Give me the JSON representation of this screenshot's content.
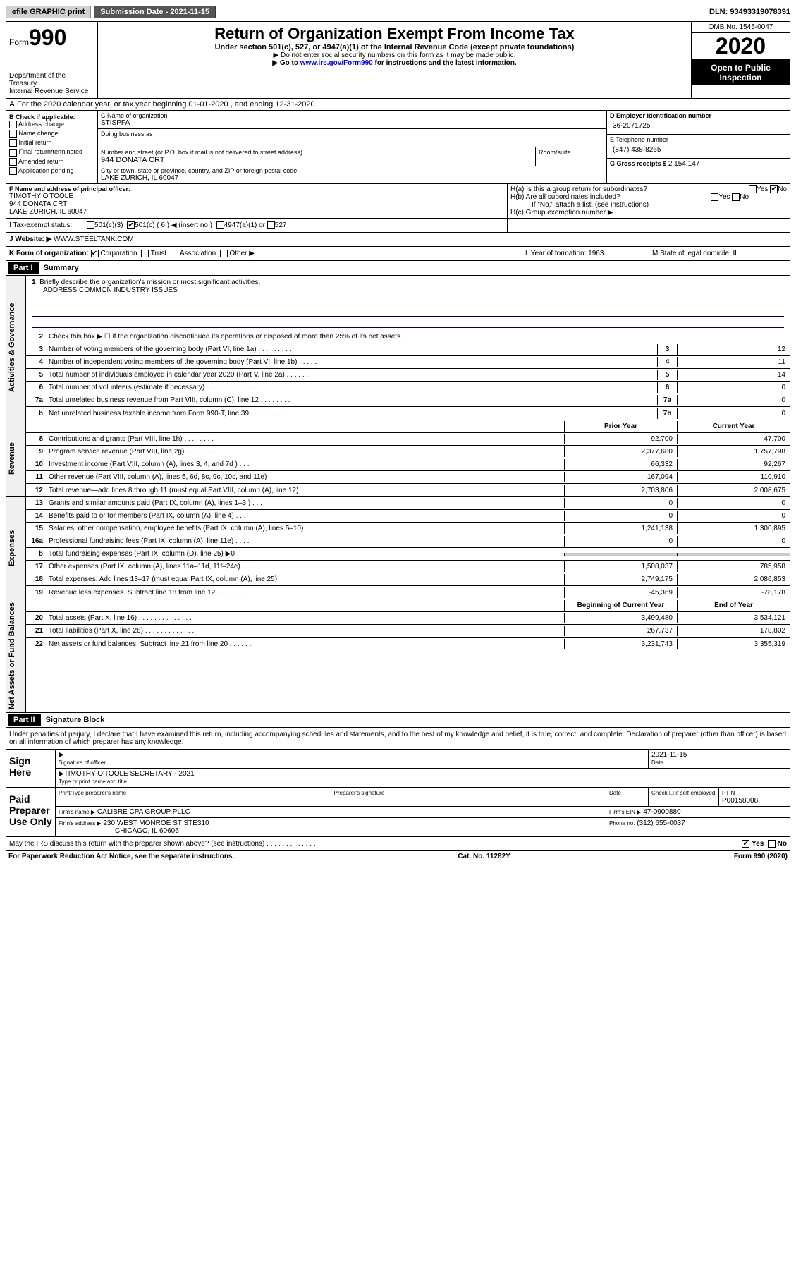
{
  "top": {
    "efile": "efile GRAPHIC print",
    "submission": "Submission Date - 2021-11-15",
    "dln": "DLN: 93493319078391"
  },
  "header": {
    "form": "Form",
    "form_num": "990",
    "dept": "Department of the Treasury",
    "irs": "Internal Revenue Service",
    "title": "Return of Organization Exempt From Income Tax",
    "sub1": "Under section 501(c), 527, or 4947(a)(1) of the Internal Revenue Code (except private foundations)",
    "sub2": "▶ Do not enter social security numbers on this form as it may be made public.",
    "sub3_a": "▶ Go to ",
    "sub3_link": "www.irs.gov/Form990",
    "sub3_b": " for instructions and the latest information.",
    "omb": "OMB No. 1545-0047",
    "year": "2020",
    "inspect": "Open to Public Inspection"
  },
  "rowA": "For the 2020 calendar year, or tax year beginning 01-01-2020   , and ending 12-31-2020",
  "colB": {
    "hdr": "B Check if applicable:",
    "opts": [
      "Address change",
      "Name change",
      "Initial return",
      "Final return/terminated",
      "Amended return",
      "Application pending"
    ]
  },
  "colC": {
    "name_lbl": "C Name of organization",
    "name": "STISPFA",
    "dba": "Doing business as",
    "addr_lbl": "Number and street (or P.O. box if mail is not delivered to street address)",
    "addr": "944 DONATA CRT",
    "room_lbl": "Room/suite",
    "city_lbl": "City or town, state or province, country, and ZIP or foreign postal code",
    "city": "LAKE ZURICH, IL   60047"
  },
  "colD": {
    "ein_lbl": "D Employer identification number",
    "ein": "36-2071725",
    "phone_lbl": "E Telephone number",
    "phone": "(847) 438-8265",
    "gross_lbl": "G Gross receipts $",
    "gross": "2,154,147"
  },
  "fg": {
    "f_lbl": "F  Name and address of principal officer:",
    "f_name": "TIMOTHY O'TOOLE",
    "f_addr1": "944 DONATA CRT",
    "f_addr2": "LAKE ZURICH, IL  60047",
    "ha": "H(a)  Is this a group return for subordinates?",
    "hb": "H(b)  Are all subordinates included?",
    "hb_note": "If \"No,\" attach a list. (see instructions)",
    "hc": "H(c)  Group exemption number ▶",
    "yes": "Yes",
    "no": "No"
  },
  "status": {
    "i": "I   Tax-exempt status:",
    "c3": "501(c)(3)",
    "c": "501(c) ( 6 ) ◀ (insert no.)",
    "a1": "4947(a)(1) or",
    "s527": "527"
  },
  "website": {
    "j": "J   Website: ▶",
    "url": "WWW.STEELTANK.COM"
  },
  "klm": {
    "k": "K Form of organization:",
    "corp": "Corporation",
    "trust": "Trust",
    "assoc": "Association",
    "other": "Other ▶",
    "l": "L Year of formation: 1963",
    "m": "M State of legal domicile: IL"
  },
  "part1": {
    "hdr": "Part I",
    "title": "Summary",
    "vtab1": "Activities & Governance",
    "vtab2": "Revenue",
    "vtab3": "Expenses",
    "vtab4": "Net Assets or Fund Balances",
    "l1": "Briefly describe the organization's mission or most significant activities:",
    "mission": "ADDRESS COMMON INDUSTRY ISSUES",
    "l2": "Check this box ▶ ☐  if the organization discontinued its operations or disposed of more than 25% of its net assets.",
    "lines_gov": [
      {
        "n": "3",
        "d": "Number of voting members of the governing body (Part VI, line 1a)   .    .    .    .    .    .    .    .    .",
        "b": "3",
        "v": "12"
      },
      {
        "n": "4",
        "d": "Number of independent voting members of the governing body (Part VI, line 1b)   .   .   .   .   .",
        "b": "4",
        "v": "11"
      },
      {
        "n": "5",
        "d": "Total number of individuals employed in calendar year 2020 (Part V, line 2a)   .   .   .   .   .   .",
        "b": "5",
        "v": "14"
      },
      {
        "n": "6",
        "d": "Total number of volunteers (estimate if necessary)   .   .   .   .   .   .   .   .   .   .   .   .   .",
        "b": "6",
        "v": "0"
      },
      {
        "n": "7a",
        "d": "Total unrelated business revenue from Part VIII, column (C), line 12   .   .   .   .   .   .   .   .   .",
        "b": "7a",
        "v": "0"
      },
      {
        "n": "b",
        "d": "Net unrelated business taxable income from Form 990-T, line 39   .   .   .   .   .   .   .   .   .",
        "b": "7b",
        "v": "0"
      }
    ],
    "col_hdr1": "Prior Year",
    "col_hdr2": "Current Year",
    "lines_rev": [
      {
        "n": "8",
        "d": "Contributions and grants (Part VIII, line 1h)   .   .   .   .   .   .   .   .",
        "p": "92,700",
        "c": "47,700"
      },
      {
        "n": "9",
        "d": "Program service revenue (Part VIII, line 2g)   .   .   .   .   .   .   .   .",
        "p": "2,377,680",
        "c": "1,757,798"
      },
      {
        "n": "10",
        "d": "Investment income (Part VIII, column (A), lines 3, 4, and 7d )   .   .   .",
        "p": "66,332",
        "c": "92,267"
      },
      {
        "n": "11",
        "d": "Other revenue (Part VIII, column (A), lines 5, 6d, 8c, 9c, 10c, and 11e)",
        "p": "167,094",
        "c": "110,910"
      },
      {
        "n": "12",
        "d": "Total revenue—add lines 8 through 11 (must equal Part VIII, column (A), line 12)",
        "p": "2,703,806",
        "c": "2,008,675"
      }
    ],
    "lines_exp": [
      {
        "n": "13",
        "d": "Grants and similar amounts paid (Part IX, column (A), lines 1–3 )   .   .   .",
        "p": "0",
        "c": "0"
      },
      {
        "n": "14",
        "d": "Benefits paid to or for members (Part IX, column (A), line 4)   .   .   .",
        "p": "0",
        "c": "0"
      },
      {
        "n": "15",
        "d": "Salaries, other compensation, employee benefits (Part IX, column (A), lines 5–10)",
        "p": "1,241,138",
        "c": "1,300,895"
      },
      {
        "n": "16a",
        "d": "Professional fundraising fees (Part IX, column (A), line 11e)   .   .   .   .   .",
        "p": "0",
        "c": "0"
      },
      {
        "n": "b",
        "d": "Total fundraising expenses (Part IX, column (D), line 25) ▶0",
        "p": "",
        "c": "",
        "gray": true
      },
      {
        "n": "17",
        "d": "Other expenses (Part IX, column (A), lines 11a–11d, 11f–24e)   .   .   .   .",
        "p": "1,508,037",
        "c": "785,958"
      },
      {
        "n": "18",
        "d": "Total expenses. Add lines 13–17 (must equal Part IX, column (A), line 25)",
        "p": "2,749,175",
        "c": "2,086,853"
      },
      {
        "n": "19",
        "d": "Revenue less expenses. Subtract line 18 from line 12 .   .   .   .   .   .   .   .",
        "p": "-45,369",
        "c": "-78,178"
      }
    ],
    "col_hdr3": "Beginning of Current Year",
    "col_hdr4": "End of Year",
    "lines_net": [
      {
        "n": "20",
        "d": "Total assets (Part X, line 16)   .   .   .   .   .   .   .   .   .   .   .   .   .   .",
        "p": "3,499,480",
        "c": "3,534,121"
      },
      {
        "n": "21",
        "d": "Total liabilities (Part X, line 26)   .   .   .   .   .   .   .   .   .   .   .   .   .",
        "p": "267,737",
        "c": "178,802"
      },
      {
        "n": "22",
        "d": "Net assets or fund balances. Subtract line 21 from line 20 .   .   .   .   .   .",
        "p": "3,231,743",
        "c": "3,355,319"
      }
    ]
  },
  "part2": {
    "hdr": "Part II",
    "title": "Signature Block",
    "declare": "Under penalties of perjury, I declare that I have examined this return, including accompanying schedules and statements, and to the best of my knowledge and belief, it is true, correct, and complete. Declaration of preparer (other than officer) is based on all information of which preparer has any knowledge.",
    "sign_lbl": "Sign Here",
    "sig_officer": "Signature of officer",
    "date": "Date",
    "date_val": "2021-11-15",
    "name_title": "TIMOTHY O'TOOLE  SECRETARY - 2021",
    "name_title_lbl": "Type or print name and title",
    "paid_lbl": "Paid Preparer Use Only",
    "prep_name_lbl": "Print/Type preparer's name",
    "prep_sig_lbl": "Preparer's signature",
    "date_lbl": "Date",
    "check_lbl": "Check ☐ if self-employed",
    "ptin_lbl": "PTIN",
    "ptin": "P00158008",
    "firm_name_lbl": "Firm's name    ▶",
    "firm_name": "CALIBRE CPA GROUP PLLC",
    "firm_ein_lbl": "Firm's EIN ▶",
    "firm_ein": "47-0900880",
    "firm_addr_lbl": "Firm's address ▶",
    "firm_addr1": "230 WEST MONROE ST STE310",
    "firm_addr2": "CHICAGO, IL   60606",
    "firm_phone_lbl": "Phone no.",
    "firm_phone": "(312) 655-0037",
    "discuss": "May the IRS discuss this return with the preparer shown above? (see instructions)   .   .   .   .   .   .   .   .   .   .   .   .   ."
  },
  "footer": {
    "pra": "For Paperwork Reduction Act Notice, see the separate instructions.",
    "cat": "Cat. No. 11282Y",
    "form": "Form 990 (2020)"
  }
}
